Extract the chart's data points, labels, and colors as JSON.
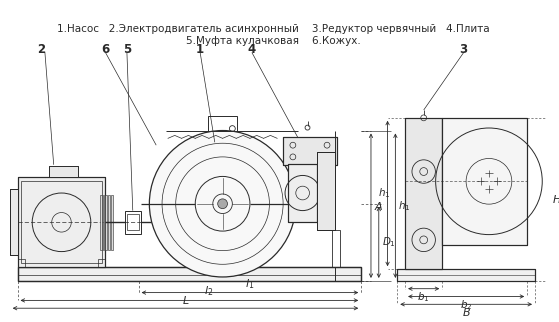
{
  "bg_color": "#ffffff",
  "lc": "#2a2a2a",
  "caption_line1": "1.Насос   2.Электродвигатель асинхронный    3.Редуктор червячный   4.Плита",
  "caption_line2": "5.Муфта кулачковая    6.Кожух.",
  "figsize": [
    5.59,
    3.22
  ],
  "dpi": 100,
  "xlim": [
    0,
    559
  ],
  "ylim": [
    0,
    322
  ]
}
